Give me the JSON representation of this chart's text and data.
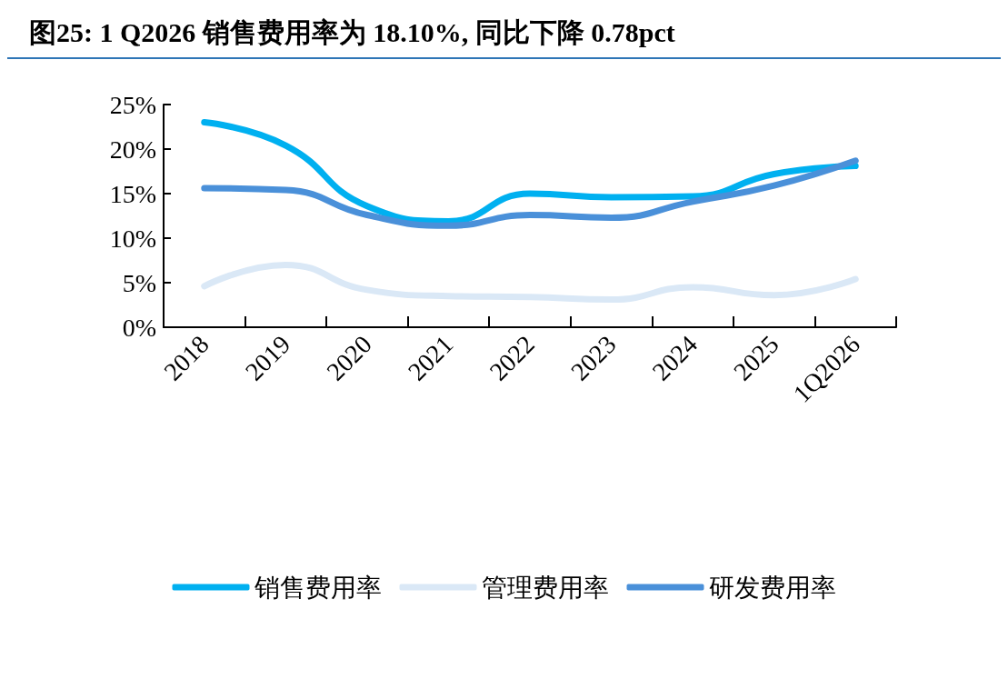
{
  "chart_data": {
    "type": "line",
    "title": "图25: 1 Q2026 销售费用率为 18.10%, 同比下降 0.78pct",
    "categories": [
      "2018",
      "2019",
      "2020",
      "2021",
      "2022",
      "2023",
      "2024",
      "2025",
      "1Q2026"
    ],
    "series": [
      {
        "name": "销售费用率",
        "color": "#00b0f0",
        "values": [
          23.0,
          20.4,
          13.6,
          11.9,
          15.0,
          14.6,
          14.7,
          17.2,
          18.1
        ]
      },
      {
        "name": "管理费用率",
        "color": "#dae8f6",
        "values": [
          4.6,
          7.0,
          4.2,
          3.5,
          3.4,
          3.1,
          4.5,
          3.6,
          5.4
        ]
      },
      {
        "name": "研发费用率",
        "color": "#4a90d9",
        "values": [
          15.6,
          15.4,
          12.6,
          11.4,
          12.6,
          12.3,
          14.1,
          15.9,
          18.7
        ]
      }
    ],
    "ylim": [
      0,
      25
    ],
    "yticks": [
      {
        "value": 0,
        "label": "0%"
      },
      {
        "value": 5,
        "label": "5%"
      },
      {
        "value": 10,
        "label": "10%"
      },
      {
        "value": 15,
        "label": "15%"
      },
      {
        "value": 20,
        "label": "20%"
      },
      {
        "value": 25,
        "label": "25%"
      }
    ],
    "grid": false,
    "legend": "bottom",
    "marker": "none",
    "line_style": "solid"
  }
}
